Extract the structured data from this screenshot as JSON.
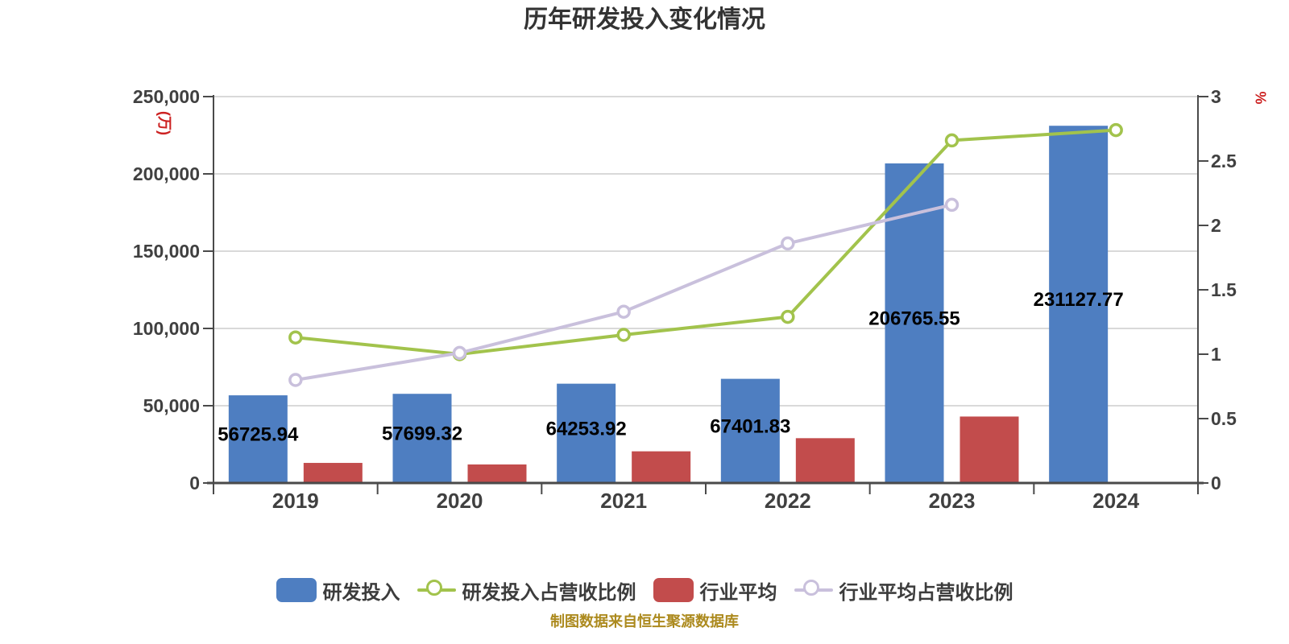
{
  "title": {
    "text": "历年研发投入变化情况"
  },
  "footer": {
    "text": "制图数据来自恒生聚源数据库"
  },
  "legend": {
    "items": [
      {
        "label": "研发投入",
        "marker": "square",
        "color": "#4e7ec1"
      },
      {
        "label": "研发投入占营收比例",
        "marker": "line-circle",
        "color": "#a2c34c"
      },
      {
        "label": "行业平均",
        "marker": "square",
        "color": "#c24c4c"
      },
      {
        "label": "行业平均占营收比例",
        "marker": "line-circle",
        "color": "#c9c0dc"
      }
    ]
  },
  "colors": {
    "grid": "#d9d9d9",
    "axis": "#4a4a4a",
    "axis_text": "#404040",
    "bar_label": "#000000",
    "unit_label": "#cc2222",
    "title": "#333333",
    "footer": "#ac8a1e"
  },
  "chart_data": {
    "type": "bar",
    "subtype": "bar-line-combo",
    "title": "历年研发投入变化情况",
    "legend_position": "bottom",
    "grid": true,
    "categories": [
      "2019",
      "2020",
      "2021",
      "2022",
      "2023",
      "2024"
    ],
    "left_axis": {
      "unit": "(万)",
      "min": 0,
      "max": 250000,
      "tick_step": 50000,
      "tick_labels": [
        "0",
        "50,000",
        "100,000",
        "150,000",
        "200,000",
        "250,000"
      ]
    },
    "right_axis": {
      "unit": "%",
      "min": 0,
      "max": 3,
      "tick_step": 0.5,
      "tick_labels": [
        "0",
        "0.5",
        "1",
        "1.5",
        "2",
        "2.5",
        "3"
      ]
    },
    "series": [
      {
        "key": "rd-investment",
        "name": "研发投入",
        "type": "bar",
        "axis": "left",
        "color": "#4e7ec1",
        "values": [
          56725.94,
          57699.32,
          64253.92,
          67401.83,
          206765.55,
          231127.77
        ],
        "data_labels": [
          "56725.94",
          "57699.32",
          "64253.92",
          "67401.83",
          "206765.55",
          "231127.77"
        ]
      },
      {
        "key": "industry-average",
        "name": "行业平均",
        "type": "bar",
        "axis": "left",
        "color": "#c24c4c",
        "values": [
          13000,
          12000,
          20500,
          29000,
          43000,
          null
        ],
        "data_labels": []
      },
      {
        "key": "rd-ratio",
        "name": "研发投入占营收比例",
        "type": "line",
        "axis": "right",
        "color": "#a2c34c",
        "values": [
          1.13,
          1.0,
          1.15,
          1.29,
          2.66,
          2.74
        ]
      },
      {
        "key": "industry-ratio",
        "name": "行业平均占营收比例",
        "type": "line",
        "axis": "right",
        "color": "#c9c0dc",
        "values": [
          0.8,
          1.01,
          1.33,
          1.86,
          2.16,
          null
        ]
      }
    ]
  }
}
